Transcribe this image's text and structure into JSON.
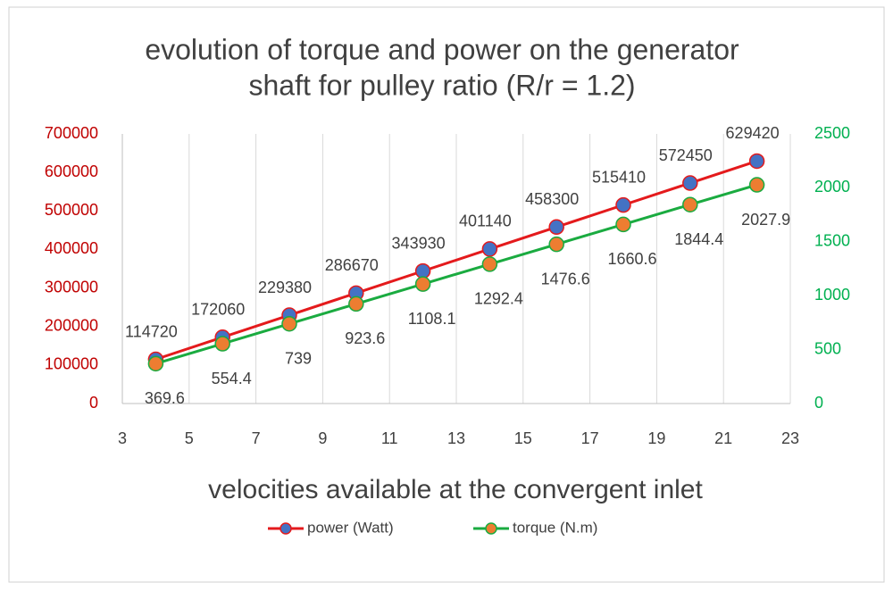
{
  "chart_data": {
    "type": "line",
    "title": [
      "evolution of torque and power on the generator",
      "shaft for pulley ratio (R/r = 1.2)"
    ],
    "x_label": "velocities available at the convergent inlet",
    "x": [
      4,
      6,
      8,
      10,
      12,
      14,
      16,
      18,
      20,
      22
    ],
    "xlim": [
      3,
      23
    ],
    "xticks": [
      3,
      5,
      7,
      9,
      11,
      13,
      15,
      17,
      19,
      21,
      23
    ],
    "ylim": [
      0,
      700000
    ],
    "yticks": [
      0,
      100000,
      200000,
      300000,
      400000,
      500000,
      600000,
      700000
    ],
    "y2lim": [
      0,
      2500
    ],
    "y2ticks": [
      0,
      500,
      1000,
      1500,
      2000,
      2500
    ],
    "ytick_color": "#c00000",
    "y2tick_color": "#00b050",
    "xgrid": true,
    "legend": "bottom",
    "series": [
      {
        "name": "power (Watt)",
        "color": "#e41a1c",
        "marker_color": "#4472c4",
        "values": [
          114720,
          172060,
          229380,
          286670,
          343930,
          401140,
          458300,
          515410,
          572450,
          629420
        ]
      },
      {
        "name": "torque (N.m)",
        "color": "#1aab40",
        "marker_color": "#ed7d31",
        "axis": "y2",
        "values": [
          369.6,
          554.4,
          739,
          923.6,
          1108.1,
          1292.4,
          1476.6,
          1660.6,
          1844.4,
          2027.9
        ]
      }
    ]
  }
}
